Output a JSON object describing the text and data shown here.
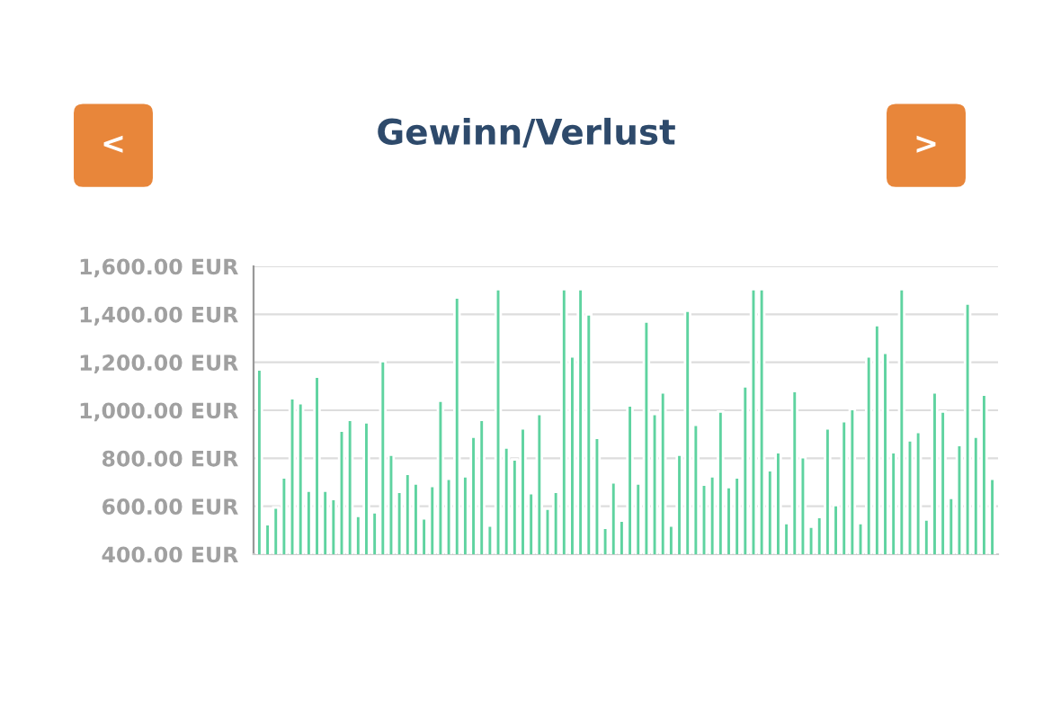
{
  "chart_data": {
    "type": "bar",
    "title": "Gewinn/Verlust",
    "categories": [
      null,
      null,
      null,
      null,
      null,
      null,
      null,
      null,
      null,
      null,
      null,
      null,
      null,
      null,
      null,
      null,
      null,
      null,
      null,
      null,
      null,
      null,
      null,
      null,
      null,
      null,
      null,
      null,
      null,
      null,
      null,
      null,
      null,
      null,
      null,
      null,
      null,
      null,
      null,
      null,
      null,
      null,
      null,
      null,
      null,
      null,
      null,
      null,
      null,
      null,
      null,
      null,
      null,
      null,
      null,
      null,
      null,
      null,
      null,
      null,
      null,
      null,
      null,
      null,
      null,
      null,
      null,
      null,
      null,
      null,
      null,
      null,
      null,
      null,
      null,
      null,
      null,
      null,
      null,
      null,
      null,
      null,
      null,
      null,
      null,
      null,
      null,
      null,
      null,
      null
    ],
    "values": [
      1170,
      525,
      595,
      720,
      1050,
      1030,
      665,
      1140,
      665,
      630,
      915,
      960,
      560,
      950,
      575,
      1205,
      815,
      660,
      735,
      695,
      550,
      685,
      1040,
      715,
      1470,
      725,
      890,
      960,
      520,
      1505,
      845,
      795,
      925,
      655,
      985,
      590,
      660,
      1505,
      1225,
      1505,
      1400,
      885,
      510,
      700,
      540,
      1020,
      695,
      1370,
      985,
      1075,
      520,
      815,
      1415,
      940,
      690,
      725,
      995,
      680,
      720,
      1100,
      1505,
      1505,
      750,
      825,
      530,
      1080,
      805,
      515,
      555,
      925,
      605,
      955,
      1005,
      530,
      1225,
      1355,
      1240,
      825,
      1505,
      875,
      910,
      545,
      1075,
      995,
      635,
      855,
      1445,
      890,
      1065,
      715
    ],
    "color": "#5fd3a0",
    "ylim": [
      400,
      1600
    ],
    "yticks": [
      {
        "value": 400,
        "label": "400.00 EUR"
      },
      {
        "value": 600,
        "label": "600.00 EUR"
      },
      {
        "value": 800,
        "label": "800.00 EUR"
      },
      {
        "value": 1000,
        "label": "1,000.00 EUR"
      },
      {
        "value": 1200,
        "label": "1,200.00 EUR"
      },
      {
        "value": 1400,
        "label": "1,400.00 EUR"
      },
      {
        "value": 1600,
        "label": "1,600.00 EUR"
      }
    ],
    "grid": "y",
    "annotations": [
      "<",
      ">"
    ]
  }
}
